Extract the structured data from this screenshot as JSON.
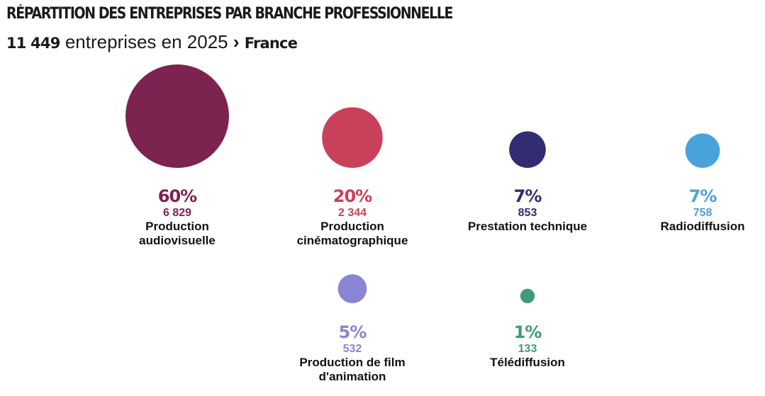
{
  "header": {
    "title": "RÉPARTITION DES ENTREPRISES PAR BRANCHE PROFESSIONNELLE",
    "total": "11 449",
    "subtitle_text": "entreprises en 2025",
    "arrow": "›",
    "region": "France"
  },
  "chart_data": {
    "type": "bubble",
    "title": "RÉPARTITION DES ENTREPRISES PAR BRANCHE PROFESSIONNELLE",
    "subtitle": "11 449 entreprises en 2025 › France",
    "total": 11449,
    "series": [
      {
        "label_lines": [
          "Production",
          "audiovisuelle"
        ],
        "percent_label": "60%",
        "count_label": "6 829",
        "value": 6829,
        "color": "#7d2350"
      },
      {
        "label_lines": [
          "Production",
          "cinématographique"
        ],
        "percent_label": "20%",
        "count_label": "2 344",
        "value": 2344,
        "color": "#c9405a"
      },
      {
        "label_lines": [
          "Prestation technique"
        ],
        "percent_label": "7%",
        "count_label": "853",
        "value": 853,
        "color": "#312c74"
      },
      {
        "label_lines": [
          "Radiodiffusion"
        ],
        "percent_label": "7%",
        "count_label": "758",
        "value": 758,
        "color": "#4aa3d8"
      },
      {
        "label_lines": [
          "Production de film",
          "d'animation"
        ],
        "percent_label": "5%",
        "count_label": "532",
        "value": 532,
        "color": "#8b83d3"
      },
      {
        "label_lines": [
          "Télédiffusion"
        ],
        "percent_label": "1%",
        "count_label": "133",
        "value": 133,
        "color": "#3f9b73"
      }
    ]
  }
}
